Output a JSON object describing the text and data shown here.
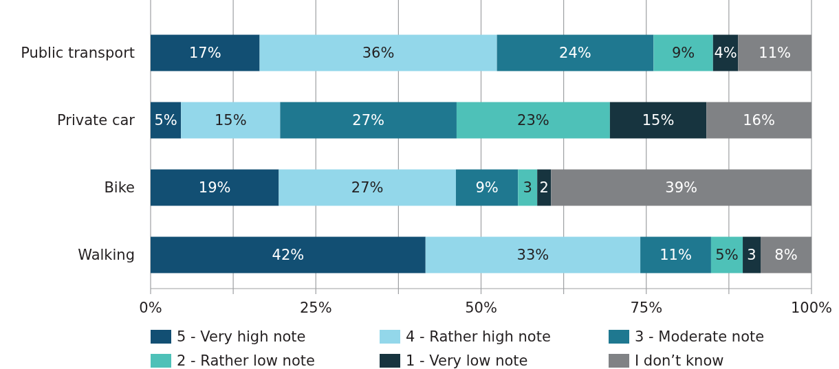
{
  "chart_data": {
    "type": "bar",
    "orientation": "horizontal",
    "stacked": true,
    "categories": [
      "Public transport",
      "Private car",
      "Bike",
      "Walking"
    ],
    "series": [
      {
        "name": "5 - Very high note",
        "color": "#124f73",
        "values": [
          16.5,
          4.6,
          19.4,
          41.6
        ],
        "value_labels": [
          "17%",
          "5%",
          "19%",
          "42%"
        ]
      },
      {
        "name": "4 - Rather high note",
        "color": "#93d7ea",
        "values": [
          35.9,
          15.0,
          26.8,
          32.5
        ],
        "value_labels": [
          "36%",
          "15%",
          "27%",
          "33%"
        ]
      },
      {
        "name": "3 - Moderate note",
        "color": "#1f7890",
        "values": [
          23.7,
          26.7,
          9.4,
          10.7
        ],
        "value_labels": [
          "24%",
          "27%",
          "9%",
          "11%"
        ]
      },
      {
        "name": "2 - Rather low note",
        "color": "#4ec1b8",
        "values": [
          9.0,
          23.2,
          2.9,
          4.8
        ],
        "value_labels": [
          "9%",
          "23%",
          "3",
          "5%"
        ]
      },
      {
        "name": "1 - Very low note",
        "color": "#17343f",
        "values": [
          3.8,
          14.6,
          2.1,
          2.7
        ],
        "value_labels": [
          "4%",
          "15%",
          "2",
          "3"
        ]
      },
      {
        "name": "I don’t know",
        "color": "#808285",
        "values": [
          11.1,
          15.9,
          39.4,
          7.7
        ],
        "value_labels": [
          "11%",
          "16%",
          "39%",
          "8%"
        ]
      }
    ],
    "xlim": [
      0,
      100
    ],
    "xticks": [
      {
        "value": 0,
        "label": "0%"
      },
      {
        "value": 12.5,
        "label": null
      },
      {
        "value": 25,
        "label": "25%"
      },
      {
        "value": 37.5,
        "label": null
      },
      {
        "value": 50,
        "label": "50%"
      },
      {
        "value": 62.5,
        "label": null
      },
      {
        "value": 75,
        "label": "75%"
      },
      {
        "value": 87.5,
        "label": null
      },
      {
        "value": 100,
        "label": "100%"
      }
    ],
    "grid": "x",
    "legend": "bottom"
  }
}
